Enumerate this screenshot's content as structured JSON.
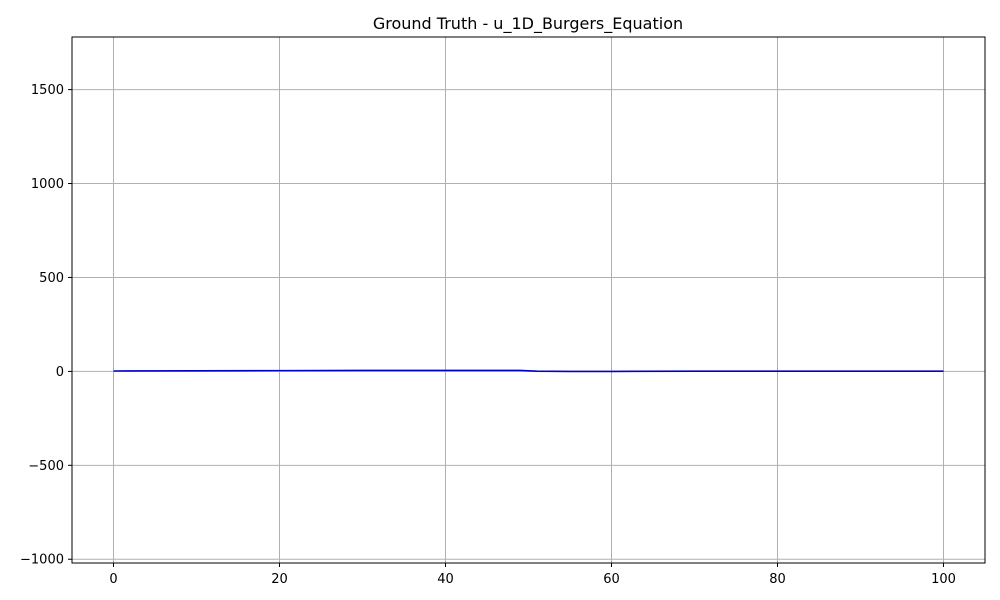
{
  "chart_data": {
    "type": "line",
    "title": "Ground Truth - u_1D_Burgers_Equation",
    "xlabel": "",
    "ylabel": "",
    "xlim": [
      -5,
      105
    ],
    "ylim": [
      -1020,
      1780
    ],
    "grid": true,
    "x_ticks": [
      0,
      20,
      40,
      60,
      80,
      100
    ],
    "x_tick_labels": [
      "0",
      "20",
      "40",
      "60",
      "80",
      "100"
    ],
    "y_ticks": [
      -1000,
      -500,
      0,
      500,
      1000,
      1500
    ],
    "y_tick_labels": [
      "−1000",
      "−500",
      "0",
      "500",
      "1000",
      "1500"
    ],
    "series": [
      {
        "color": "#0000cc",
        "x": [
          0,
          10,
          20,
          30,
          40,
          45,
          49,
          50,
          51,
          55,
          60,
          70,
          80,
          90,
          100
        ],
        "y": [
          2,
          3,
          4,
          5,
          5,
          5,
          5,
          3,
          1,
          0,
          0,
          1,
          1,
          1,
          1
        ]
      }
    ]
  }
}
